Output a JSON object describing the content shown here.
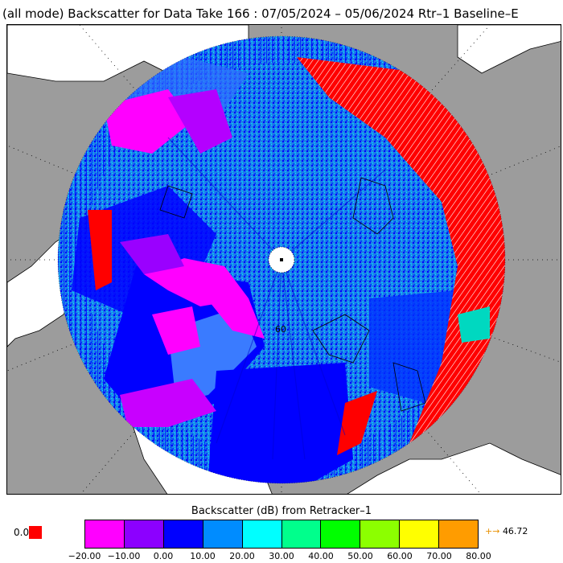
{
  "title": "(all mode) Backscatter for Data Take 166 : 07/05/2024 – 05/06/2024 Rtr–1 Baseline–E",
  "map": {
    "projection": "polar-stereographic-north",
    "latitude_label": "60",
    "colors": {
      "ocean": "#ffffff",
      "land": "#9c9c9c",
      "coast": "#000000",
      "graticule": "#000000",
      "pole_hole": "#ffffff"
    }
  },
  "colorbar": {
    "title": "Backscatter (dB) from Retracker–1",
    "colors": [
      "#ff00ff",
      "#8c00ff",
      "#0000ff",
      "#008cff",
      "#00ffff",
      "#00ff8c",
      "#00ff00",
      "#8cff00",
      "#ffff00",
      "#ff9c00"
    ],
    "tick_labels": [
      "−20.00",
      "−10.00",
      "0.00",
      "10.00",
      "20.00",
      "30.00",
      "40.00",
      "50.00",
      "60.00",
      "70.00",
      "80.00"
    ],
    "underflow_label": "0.0",
    "underflow_color": "#ff0000",
    "overflow_arrow": "+→",
    "overflow_value": "46.72"
  }
}
